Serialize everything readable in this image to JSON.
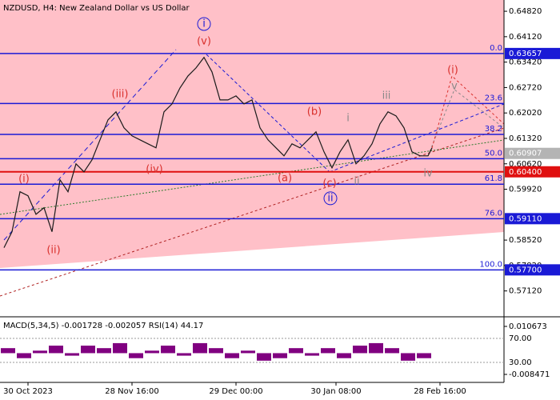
{
  "chart_data": {
    "type": "line",
    "title": "NZDUSD, H4:  New Zealand Dollar vs US Dollar",
    "x": [
      1,
      3,
      5,
      7,
      9,
      11,
      13,
      15,
      17,
      19,
      21,
      23,
      25,
      27,
      29,
      31,
      33,
      35,
      37,
      39,
      41,
      43,
      45,
      47,
      49,
      51,
      53,
      55,
      57,
      59,
      61,
      63,
      65,
      67,
      69,
      71,
      73,
      75,
      77,
      79,
      81,
      83,
      85,
      87,
      89,
      91,
      93,
      95,
      97,
      99,
      101,
      103,
      105,
      107,
      108
    ],
    "series": [
      {
        "color": "#1a1a1a",
        "values": [
          0.5831,
          0.5875,
          0.5985,
          0.5974,
          0.5923,
          0.5941,
          0.5875,
          0.6018,
          0.5985,
          0.6062,
          0.604,
          0.6073,
          0.6128,
          0.6183,
          0.6205,
          0.6161,
          0.6139,
          0.6128,
          0.6117,
          0.6106,
          0.6205,
          0.6227,
          0.6271,
          0.6304,
          0.6326,
          0.6355,
          0.6315,
          0.6238,
          0.6238,
          0.6249,
          0.6227,
          0.6238,
          0.6161,
          0.6128,
          0.6106,
          0.6084,
          0.6117,
          0.6106,
          0.6128,
          0.615,
          0.6095,
          0.6051,
          0.6095,
          0.6128,
          0.6062,
          0.6084,
          0.6117,
          0.6172,
          0.6205,
          0.6194,
          0.6161,
          0.6095,
          0.6084,
          0.6084,
          0.6106
        ]
      }
    ],
    "xlim": [
      0,
      126
    ],
    "xticks": [
      {
        "value": 7,
        "label": "30 Oct 2023"
      },
      {
        "value": 33,
        "label": "28 Nov 16:00"
      },
      {
        "value": 59,
        "label": "29 Dec 00:00"
      },
      {
        "value": 84,
        "label": "30 Jan 08:00"
      },
      {
        "value": 110,
        "label": "28 Feb 16:00"
      }
    ],
    "ylim": [
      0.5643,
      0.6513
    ],
    "yticks": [
      {
        "value": 0.6482,
        "label": "0.64820"
      },
      {
        "value": 0.6412,
        "label": "0.64120"
      },
      {
        "value": 0.6342,
        "label": "0.63420"
      },
      {
        "value": 0.6272,
        "label": "0.62720"
      },
      {
        "value": 0.6202,
        "label": "0.62020"
      },
      {
        "value": 0.6132,
        "label": "0.61320"
      },
      {
        "value": 0.6062,
        "label": "0.60620"
      },
      {
        "value": 0.5992,
        "label": "0.59920"
      },
      {
        "value": 0.5852,
        "label": "0.58520"
      },
      {
        "value": 0.5782,
        "label": "0.57820"
      },
      {
        "value": 0.5712,
        "label": "0.57120"
      }
    ],
    "fib_levels": [
      {
        "label": "0.0",
        "value": 0.63657
      },
      {
        "label": "23.6",
        "value": 0.6228
      },
      {
        "label": "38.2",
        "value": 0.6143
      },
      {
        "label": "50.0",
        "value": 0.6076
      },
      {
        "label": "61.8",
        "value": 0.6006
      },
      {
        "label": "76.0",
        "value": 0.5911
      },
      {
        "label": "100.0",
        "value": 0.577
      }
    ],
    "price_labels": [
      {
        "value": 0.63657,
        "label": "0.63657",
        "color": "#1a1ad6"
      },
      {
        "value": 0.60907,
        "label": "0.60907",
        "color": "#b4b4b4"
      },
      {
        "value": 0.604,
        "label": "0.60400",
        "color": "#e01010",
        "line": true
      },
      {
        "value": 0.5911,
        "label": "0.59110",
        "color": "#1a1ad6"
      },
      {
        "value": 0.577,
        "label": "0.57700",
        "color": "#1a1ad6"
      }
    ],
    "annotations": [
      {
        "text": "i",
        "x": 51,
        "y": 0.6447,
        "color": "#1a1ad6",
        "circled": true
      },
      {
        "text": "(v)",
        "x": 51,
        "y": 0.6399,
        "color": "#d9302c"
      },
      {
        "text": "(iii)",
        "x": 30,
        "y": 0.6253,
        "color": "#d9302c"
      },
      {
        "text": "(iv)",
        "x": 38.6,
        "y": 0.6046,
        "color": "#d9302c"
      },
      {
        "text": "(i)",
        "x": 6,
        "y": 0.602,
        "color": "#d9302c"
      },
      {
        "text": "(ii)",
        "x": 13.4,
        "y": 0.5824,
        "color": "#d9302c"
      },
      {
        "text": "(b)",
        "x": 78.6,
        "y": 0.6205,
        "color": "#d9302c"
      },
      {
        "text": "(a)",
        "x": 71.2,
        "y": 0.6022,
        "color": "#d9302c"
      },
      {
        "text": "(c)",
        "x": 82.4,
        "y": 0.6007,
        "color": "#d9302c"
      },
      {
        "text": "ii",
        "x": 82.6,
        "y": 0.5967,
        "color": "#1a1ad6",
        "circled": true
      },
      {
        "text": "i",
        "x": 87,
        "y": 0.6187,
        "color": "#888888"
      },
      {
        "text": "ii",
        "x": 89.2,
        "y": 0.6013,
        "color": "#888888"
      },
      {
        "text": "iii",
        "x": 96.6,
        "y": 0.6249,
        "color": "#888888"
      },
      {
        "text": "iv",
        "x": 107,
        "y": 0.6035,
        "color": "#888888"
      },
      {
        "text": "v",
        "x": 113.6,
        "y": 0.6275,
        "color": "#888888"
      },
      {
        "text": "(i)",
        "x": 113.2,
        "y": 0.6319,
        "color": "#d9302c"
      }
    ],
    "indicator": {
      "title": "MACD(5,34,5) -0.001728 -0.002057 RSI(14) 44.17",
      "color": "#800080",
      "x": [
        2,
        6,
        10,
        14,
        18,
        22,
        26,
        30,
        34,
        38,
        42,
        46,
        50,
        54,
        58,
        62,
        66,
        70,
        74,
        78,
        82,
        86,
        90,
        94,
        98,
        102,
        106
      ],
      "values": [
        0.002,
        -0.002,
        0.001,
        0.003,
        -0.001,
        0.003,
        0.002,
        0.004,
        -0.002,
        0.001,
        0.003,
        -0.001,
        0.004,
        0.002,
        -0.002,
        0.001,
        -0.003,
        -0.002,
        0.002,
        -0.001,
        0.002,
        -0.002,
        0.003,
        0.004,
        0.002,
        -0.003,
        -0.002
      ],
      "ylim": [
        -0.008471,
        0.010673
      ],
      "yticks": [
        {
          "value": 0.010673,
          "label": "0.010673"
        },
        {
          "value": -0.008471,
          "label": "-0.008471"
        }
      ],
      "rsi_ylim": [
        10,
        90
      ],
      "rsi_ticks": [
        {
          "value": 70,
          "label": "70.00"
        },
        {
          "value": 30,
          "label": "30.00"
        }
      ]
    }
  }
}
